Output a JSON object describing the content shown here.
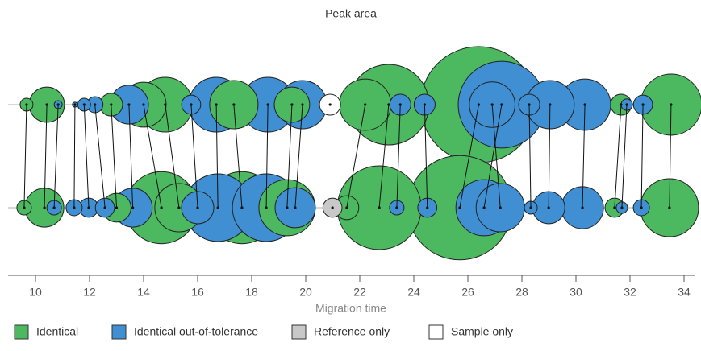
{
  "chart_data": {
    "type": "peak-comparison",
    "title": "Peak area",
    "x_label": "Migration time",
    "xlim": [
      9,
      34.4
    ],
    "xticks": [
      10,
      12,
      14,
      16,
      18,
      20,
      22,
      24,
      26,
      28,
      30,
      32,
      34
    ],
    "series": [
      {
        "name": "Identical",
        "color": "#4cb860",
        "sample_x": [
          9.67,
          10.42,
          12.8,
          14.0,
          14.8,
          17.34,
          19.49,
          22.2,
          23.07,
          26.4,
          31.67,
          33.52
        ],
        "sample_area": [
          0.64,
          4.8,
          2.0,
          7.8,
          11.6,
          9.0,
          4.8,
          10.2,
          25,
          52,
          1.7,
          14.4
        ],
        "reference_x": [
          9.58,
          10.33,
          13.0,
          14.66,
          15.31,
          17.64,
          19.31,
          21.52,
          22.72,
          25.7,
          31.43,
          33.46
        ],
        "reference_area": [
          0.81,
          5.8,
          3.2,
          20,
          9.0,
          20,
          12.2,
          2.2,
          27,
          42,
          1.4,
          13.0
        ]
      },
      {
        "name": "Identical out-of-tolerance",
        "color": "#3f8fd2",
        "sample_x": [
          10.84,
          11.46,
          11.8,
          12.2,
          13.46,
          15.76,
          16.69,
          18.6,
          19.88,
          23.5,
          24.4,
          27.25,
          26.9,
          28.27,
          29.04,
          30.33,
          31.88,
          32.48
        ],
        "sample_area": [
          0.25,
          0.1,
          0.64,
          1.0,
          5.8,
          1.4,
          11.6,
          11.6,
          9.0,
          1.7,
          1.7,
          29,
          8,
          1.7,
          9.0,
          10.2,
          0.5,
          1.4
        ],
        "reference_x": [
          10.69,
          11.43,
          11.97,
          12.57,
          13.6,
          16.0,
          16.75,
          18.54,
          19.61,
          23.37,
          24.5,
          26.6,
          27.2,
          28.33,
          28.99,
          30.24,
          31.7,
          32.42
        ],
        "reference_area": [
          0.81,
          1.0,
          1.4,
          1.4,
          5.8,
          4.0,
          17.6,
          17.6,
          6.2,
          0.81,
          1.4,
          12.2,
          9.0,
          0.64,
          4.0,
          6.8,
          0.5,
          1.0
        ]
      },
      {
        "name": "Reference only",
        "color": "#c8c8c8",
        "reference_x": [
          20.99
        ],
        "reference_area": [
          1.4
        ]
      },
      {
        "name": "Sample only",
        "color": "#ffffff",
        "sample_x": [
          20.9
        ],
        "sample_area": [
          1.7
        ]
      }
    ]
  }
}
